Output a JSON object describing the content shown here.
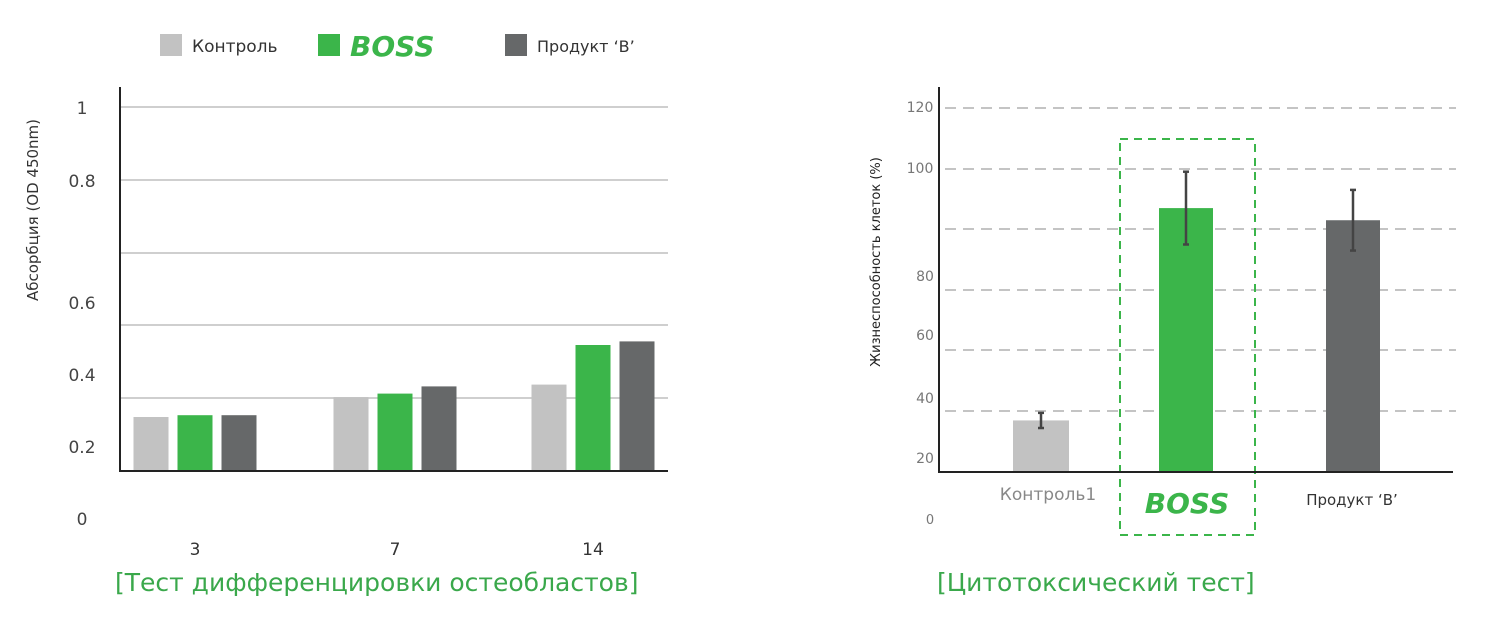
{
  "colors": {
    "control": "#c2c2c2",
    "boss": "#3bb54a",
    "product_b": "#666869",
    "caption": "#3aa84b",
    "grid": "#cfcfcf",
    "dashed_grid": "#c4c4c4"
  },
  "brand": {
    "boss_logo_text": "BOSS"
  },
  "captions": {
    "left": "[Тест дифференцировки остеобластов]",
    "right": "[Цитотоксический тест]"
  },
  "chart_data": [
    {
      "type": "bar",
      "title": "",
      "ylabel": "Абсорбция (OD 450nm)",
      "xlabel": "",
      "categories": [
        "3",
        "7",
        "14"
      ],
      "y_tick_labels": [
        "0",
        "0.2",
        "0.4",
        "0.6",
        "0.8",
        "1"
      ],
      "grid": true,
      "legend_position": "top",
      "legend": [
        "Контроль",
        "BOSS",
        "Продукт ‘B’"
      ],
      "series": [
        {
          "name": "Контроль",
          "values": [
            0.15,
            0.205,
            0.24
          ]
        },
        {
          "name": "BOSS",
          "values": [
            0.155,
            0.215,
            0.35
          ]
        },
        {
          "name": "Продукт ‘B’",
          "values": [
            0.155,
            0.235,
            0.36
          ]
        }
      ]
    },
    {
      "type": "bar",
      "title": "",
      "ylabel": "Жизнеспособность клеток (%)",
      "xlabel": "",
      "categories": [
        "Контроль1",
        "BOSS",
        "Продукт ‘B’"
      ],
      "y_tick_labels": [
        "0",
        "20",
        "40",
        "60",
        "80",
        "100",
        "120"
      ],
      "ylim": [
        0,
        120
      ],
      "grid": true,
      "highlight": "BOSS",
      "values": [
        17,
        87,
        83
      ],
      "error": [
        2.5,
        12,
        10
      ]
    }
  ]
}
